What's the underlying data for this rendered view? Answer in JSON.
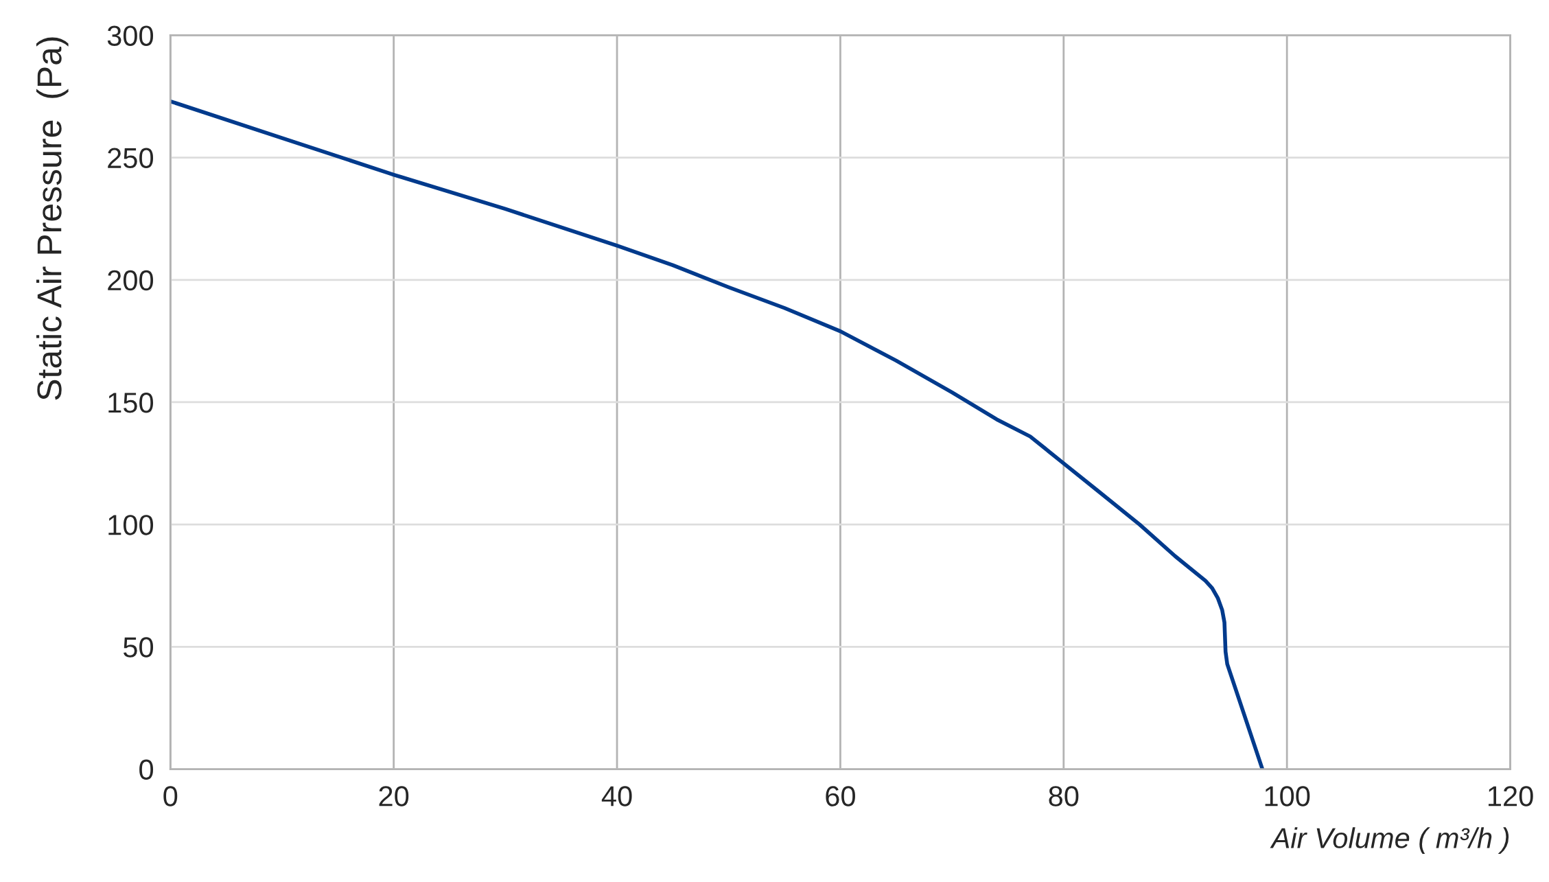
{
  "chart_data": {
    "type": "line",
    "xlabel": "Air Volume ( m³/h )",
    "ylabel": "Static Air Pressure  (Pa)",
    "x": [
      0,
      10,
      20,
      30,
      40,
      45,
      50,
      55,
      60,
      65,
      70,
      74,
      77,
      80,
      83,
      86.8,
      90,
      92.7,
      93.3,
      93.8,
      94.2,
      94.4,
      94.45,
      94.5,
      94.65,
      97.8
    ],
    "series": [
      {
        "color": "#003a8c",
        "values": [
          273,
          258,
          243,
          229,
          214,
          206,
          197,
          188.5,
          179,
          167,
          154,
          143,
          136,
          125,
          114,
          100,
          87,
          77,
          74,
          70,
          65,
          60,
          54,
          48,
          43,
          0
        ]
      }
    ],
    "xlim": [
      0,
      120
    ],
    "xticks": [
      0,
      20,
      40,
      60,
      80,
      100,
      120
    ],
    "ylim": [
      0,
      300
    ],
    "yticks": [
      0,
      50,
      100,
      150,
      200,
      250,
      300
    ],
    "grid": true,
    "marker": "none",
    "line_style": "solid"
  }
}
